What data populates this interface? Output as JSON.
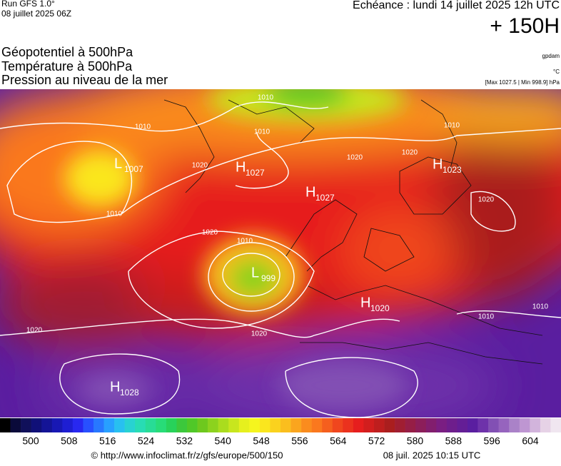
{
  "header": {
    "run": "Run GFS 1.0°",
    "run_date": "08 juillet 2025 06Z",
    "valid": "Echéance : lundi 14 juillet 2025 12h UTC",
    "lead": "+ 150H"
  },
  "fields": [
    "Géopotentiel à 500hPa",
    "Température à 500hPa",
    "Pression au niveau de la mer"
  ],
  "units": {
    "geopotential": "gpdam",
    "temperature": "°C",
    "pressure": "[Max 1027.5 | Min 998.9] hPa"
  },
  "pressure_centers": [
    {
      "letter": "L",
      "value": "1007"
    },
    {
      "letter": "H",
      "value": "1027"
    },
    {
      "letter": "H",
      "value": "1027"
    },
    {
      "letter": "H",
      "value": "1023"
    },
    {
      "letter": "L",
      "value": "999"
    },
    {
      "letter": "H",
      "value": "1020"
    },
    {
      "letter": "H",
      "value": "1028"
    }
  ],
  "isobar_labels": [
    "1010",
    "1010",
    "1010",
    "1010",
    "1020",
    "1020",
    "1020",
    "1020",
    "1010",
    "1020",
    "1020",
    "1020",
    "1010",
    "1010",
    "1010"
  ],
  "colorbar": {
    "labels": [
      "500",
      "508",
      "516",
      "524",
      "532",
      "540",
      "548",
      "556",
      "564",
      "572",
      "580",
      "588",
      "596",
      "604"
    ],
    "colors": [
      "#000000",
      "#0a0a3a",
      "#10105a",
      "#101078",
      "#141496",
      "#1818b4",
      "#1e1ed2",
      "#2828f0",
      "#2850ff",
      "#2878ff",
      "#28a0ff",
      "#28c0f0",
      "#28d2d2",
      "#28dcb4",
      "#28dc96",
      "#28dc78",
      "#28d25a",
      "#3cc83c",
      "#50c828",
      "#6ec81e",
      "#8cd21e",
      "#aadc1e",
      "#c8e61e",
      "#e6f01e",
      "#f5f51e",
      "#fae61e",
      "#fad21e",
      "#fabe1e",
      "#faa51e",
      "#fa8c1e",
      "#fa781e",
      "#f55f1e",
      "#f0461e",
      "#eb321e",
      "#e61e1e",
      "#d21e1e",
      "#be1e1e",
      "#aa1e1e",
      "#a01e32",
      "#961e46",
      "#8c1e5a",
      "#821e6e",
      "#7a1e82",
      "#6e1e8c",
      "#641e96",
      "#5a1ea0",
      "#6e32aa",
      "#8250b4",
      "#9664be",
      "#aa82c8",
      "#be96d2",
      "#d2b4dc",
      "#e6d2e6",
      "#f0e6f0"
    ]
  },
  "footer": {
    "url": "© http://www.infoclimat.fr/z/gfs/europe/500/150",
    "generated": "08 juil. 2025 10:15 UTC"
  }
}
